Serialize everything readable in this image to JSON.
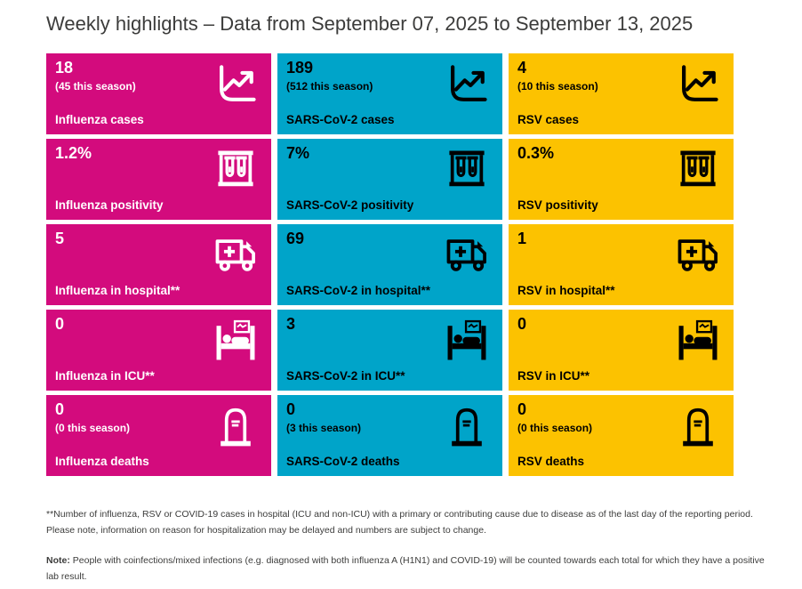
{
  "title": "Weekly highlights – Data from September 07, 2025 to September 13, 2025",
  "colors": {
    "influenza": {
      "bg": "#d30b7d",
      "text": "#ffffff"
    },
    "sars": {
      "bg": "#00a4c9",
      "text": "#000000"
    },
    "rsv": {
      "bg": "#fcc200",
      "text": "#000000"
    }
  },
  "cards": [
    {
      "id": "influenza-cases",
      "value": "18",
      "season": "(45 this season)",
      "label": "Influenza cases",
      "icon": "trend-chart-icon",
      "variant": "influenza"
    },
    {
      "id": "sars-cov-2-cases",
      "value": "189",
      "season": "(512 this season)",
      "label": "SARS-CoV-2 cases",
      "icon": "trend-chart-icon",
      "variant": "sars"
    },
    {
      "id": "rsv-cases",
      "value": "4",
      "season": "(10 this season)",
      "label": "RSV cases",
      "icon": "trend-chart-icon",
      "variant": "rsv"
    },
    {
      "id": "influenza-positivity",
      "value": "1.2%",
      "season": "",
      "label": "Influenza positivity",
      "icon": "test-tubes-icon",
      "variant": "influenza"
    },
    {
      "id": "sars-cov-2-positivity",
      "value": "7%",
      "season": "",
      "label": "SARS-CoV-2 positivity",
      "icon": "test-tubes-icon",
      "variant": "sars"
    },
    {
      "id": "rsv-positivity",
      "value": "0.3%",
      "season": "",
      "label": "RSV positivity",
      "icon": "test-tubes-icon",
      "variant": "rsv"
    },
    {
      "id": "influenza-in-hospital",
      "value": "5",
      "season": "",
      "label": "Influenza in hospital**",
      "icon": "ambulance-icon",
      "variant": "influenza"
    },
    {
      "id": "sars-cov-2-in-hospital",
      "value": "69",
      "season": "",
      "label": "SARS-CoV-2 in hospital**",
      "icon": "ambulance-icon",
      "variant": "sars"
    },
    {
      "id": "rsv-in-hospital",
      "value": "1",
      "season": "",
      "label": "RSV in hospital**",
      "icon": "ambulance-icon",
      "variant": "rsv"
    },
    {
      "id": "influenza-in-icu",
      "value": "0",
      "season": "",
      "label": "Influenza in ICU**",
      "icon": "hospital-bed-icon",
      "variant": "influenza"
    },
    {
      "id": "sars-cov-2-in-icu",
      "value": "3",
      "season": "",
      "label": "SARS-CoV-2 in ICU**",
      "icon": "hospital-bed-icon",
      "variant": "sars"
    },
    {
      "id": "rsv-in-icu",
      "value": "0",
      "season": "",
      "label": "RSV in ICU**",
      "icon": "hospital-bed-icon",
      "variant": "rsv"
    },
    {
      "id": "influenza-deaths",
      "value": "0",
      "season": "(0 this season)",
      "label": "Influenza deaths",
      "icon": "tombstone-icon",
      "variant": "influenza"
    },
    {
      "id": "sars-cov-2-deaths",
      "value": "0",
      "season": "(3 this season)",
      "label": "SARS-CoV-2 deaths",
      "icon": "tombstone-icon",
      "variant": "sars"
    },
    {
      "id": "rsv-deaths",
      "value": "0",
      "season": "(0 this season)",
      "label": "RSV deaths",
      "icon": "tombstone-icon",
      "variant": "rsv"
    }
  ],
  "footnotes": {
    "hospital_note": "**Number of influenza, RSV or COVID-19 cases in hospital (ICU and non-ICU) with a primary or contributing cause due to disease as of the last day of the reporting period. Please note, information on reason for hospitalization may be delayed and numbers are subject to change.",
    "note_label": "Note:",
    "note_text": " People with coinfections/mixed infections (e.g. diagnosed with both influenza A (H1N1) and COVID-19) will be counted towards each total for which they have a positive lab result."
  }
}
